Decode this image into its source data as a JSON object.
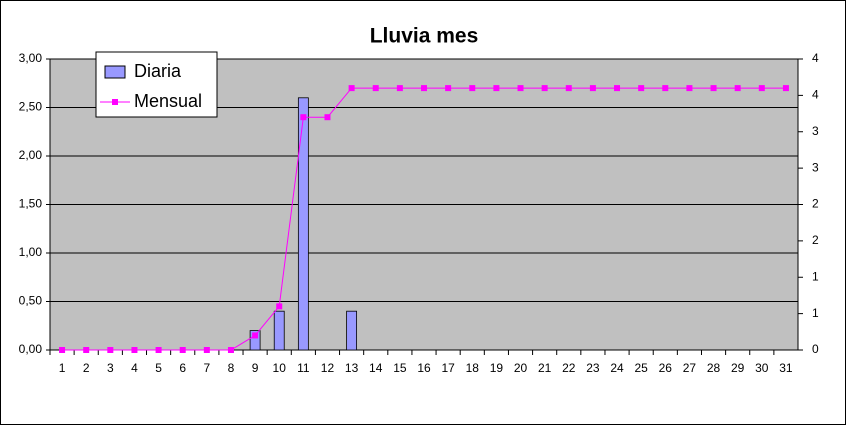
{
  "chart_data": {
    "type": "bar",
    "title": "Lluvia mes",
    "categories": [
      "1",
      "2",
      "3",
      "4",
      "5",
      "6",
      "7",
      "8",
      "9",
      "10",
      "11",
      "12",
      "13",
      "14",
      "15",
      "16",
      "17",
      "18",
      "19",
      "20",
      "21",
      "22",
      "23",
      "24",
      "25",
      "26",
      "27",
      "28",
      "29",
      "30",
      "31"
    ],
    "series": [
      {
        "name": "Diaria",
        "type": "bar",
        "color": "#9999ff",
        "values": [
          0,
          0,
          0,
          0,
          0,
          0,
          0,
          0,
          0.2,
          0.4,
          2.6,
          0,
          0.4,
          0,
          0,
          0,
          0,
          0,
          0,
          0,
          0,
          0,
          0,
          0,
          0,
          0,
          0,
          0,
          0,
          0,
          0
        ]
      },
      {
        "name": "Mensual",
        "type": "line",
        "axis": "y2",
        "color": "#ff00ff",
        "values": [
          0,
          0,
          0,
          0,
          0,
          0,
          0,
          0,
          0.2,
          0.6,
          3.2,
          3.2,
          3.6,
          3.6,
          3.6,
          3.6,
          3.6,
          3.6,
          3.6,
          3.6,
          3.6,
          3.6,
          3.6,
          3.6,
          3.6,
          3.6,
          3.6,
          3.6,
          3.6,
          3.6,
          3.6
        ]
      }
    ],
    "ylim": [
      0,
      3
    ],
    "yticks": [
      {
        "value": 0,
        "label": "0,00"
      },
      {
        "value": 0.5,
        "label": "0,50"
      },
      {
        "value": 1,
        "label": "1,00"
      },
      {
        "value": 1.5,
        "label": "1,50"
      },
      {
        "value": 2,
        "label": "2,00"
      },
      {
        "value": 2.5,
        "label": "2,50"
      },
      {
        "value": 3,
        "label": "3,00"
      }
    ],
    "y2lim": [
      0,
      4
    ],
    "y2ticks": [
      0,
      {
        "value": 0.5,
        "label": "1"
      },
      1,
      {
        "value": 1.5,
        "label": "2"
      },
      2,
      {
        "value": 2.5,
        "label": "3"
      },
      3,
      {
        "value": 3.5,
        "label": "4"
      },
      4
    ],
    "grid": true,
    "legend": "top-left",
    "plot_background": "#c0c0c0"
  }
}
